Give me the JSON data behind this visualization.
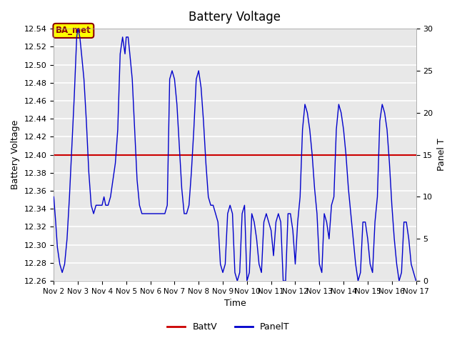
{
  "title": "Battery Voltage",
  "ylabel_left": "Battery Voltage",
  "ylabel_right": "Panel T",
  "xlabel": "Time",
  "ylim_left": [
    12.26,
    12.54
  ],
  "ylim_right": [
    0,
    30
  ],
  "battv_value": 12.4,
  "battv_color": "#cc0000",
  "panelt_color": "#0000cc",
  "background_color": "#e8e8e8",
  "grid_color": "#ffffff",
  "annotation_text": "BA_met",
  "annotation_bg": "#ffff00",
  "annotation_border": "#8b0000",
  "legend_items": [
    "BattV",
    "PanelT"
  ],
  "x_tick_labels": [
    "Nov 2",
    "Nov 3",
    "Nov 4",
    "Nov 5",
    "Nov 6",
    "Nov 7",
    "Nov 8",
    "Nov 9",
    "Nov 10",
    "Nov 11",
    "Nov 12",
    "Nov 13",
    "Nov 14",
    "Nov 15",
    "Nov 16",
    "Nov 17"
  ],
  "x_tick_positions": [
    1,
    2,
    3,
    4,
    5,
    6,
    7,
    8,
    9,
    10,
    11,
    12,
    13,
    14,
    15,
    16
  ],
  "panelt_x": [
    1.0,
    1.08,
    1.15,
    1.25,
    1.35,
    1.45,
    1.55,
    1.65,
    1.75,
    1.85,
    1.95,
    2.0,
    2.08,
    2.15,
    2.25,
    2.35,
    2.45,
    2.55,
    2.65,
    2.75,
    2.85,
    2.95,
    3.0,
    3.08,
    3.15,
    3.25,
    3.35,
    3.45,
    3.55,
    3.65,
    3.75,
    3.85,
    3.95,
    4.0,
    4.08,
    4.15,
    4.25,
    4.35,
    4.45,
    4.55,
    4.65,
    4.75,
    4.85,
    4.95,
    5.0,
    5.1,
    5.2,
    5.3,
    5.4,
    5.5,
    5.6,
    5.7,
    5.8,
    5.9,
    6.0,
    6.1,
    6.2,
    6.3,
    6.4,
    6.5,
    6.6,
    6.7,
    6.8,
    6.9,
    7.0,
    7.1,
    7.2,
    7.3,
    7.4,
    7.5,
    7.6,
    7.7,
    7.8,
    7.9,
    8.0,
    8.1,
    8.2,
    8.3,
    8.4,
    8.5,
    8.6,
    8.7,
    8.8,
    8.9,
    9.0,
    9.1,
    9.2,
    9.3,
    9.4,
    9.5,
    9.6,
    9.7,
    9.8,
    9.9,
    10.0,
    10.1,
    10.2,
    10.3,
    10.4,
    10.5,
    10.6,
    10.7,
    10.8,
    10.9,
    11.0,
    11.1,
    11.2,
    11.3,
    11.4,
    11.5,
    11.6,
    11.7,
    11.8,
    11.9,
    12.0,
    12.1,
    12.2,
    12.3,
    12.4,
    12.5,
    12.6,
    12.7,
    12.8,
    12.9,
    13.0,
    13.1,
    13.2,
    13.3,
    13.4,
    13.5,
    13.6,
    13.7,
    13.8,
    13.9,
    14.0,
    14.1,
    14.2,
    14.3,
    14.4,
    14.5,
    14.6,
    14.7,
    14.8,
    14.9,
    15.0,
    15.1,
    15.2,
    15.3,
    15.4,
    15.5,
    15.6,
    15.7,
    15.8,
    15.9,
    16.0
  ],
  "panelt_y": [
    10,
    7,
    4,
    2,
    1,
    2,
    5,
    10,
    16,
    22,
    29,
    30,
    29,
    27,
    24,
    19,
    13,
    9,
    8,
    9,
    9,
    9,
    9,
    10,
    9,
    9,
    10,
    12,
    14,
    18,
    27,
    29,
    27,
    29,
    29,
    27,
    24,
    18,
    12,
    9,
    8,
    8,
    8,
    8,
    8,
    8,
    8,
    8,
    8,
    8,
    8,
    9,
    24,
    25,
    24,
    21,
    16,
    11,
    8,
    8,
    9,
    13,
    18,
    24,
    25,
    23,
    19,
    14,
    10,
    9,
    9,
    8,
    7,
    2,
    1,
    2,
    8,
    9,
    8,
    1,
    0,
    1,
    8,
    9,
    0,
    1,
    8,
    7,
    5,
    2,
    1,
    7,
    8,
    7,
    6,
    3,
    7,
    8,
    7,
    0,
    0,
    8,
    8,
    6,
    2,
    7,
    10,
    18,
    21,
    20,
    18,
    15,
    11,
    8,
    2,
    1,
    8,
    7,
    5,
    9,
    10,
    18,
    21,
    20,
    18,
    15,
    11,
    8,
    5,
    2,
    0,
    1,
    7,
    7,
    5,
    2,
    1,
    7,
    10,
    19,
    21,
    20,
    18,
    14,
    9,
    5,
    2,
    0,
    1,
    7,
    7,
    5,
    2,
    1,
    0
  ]
}
